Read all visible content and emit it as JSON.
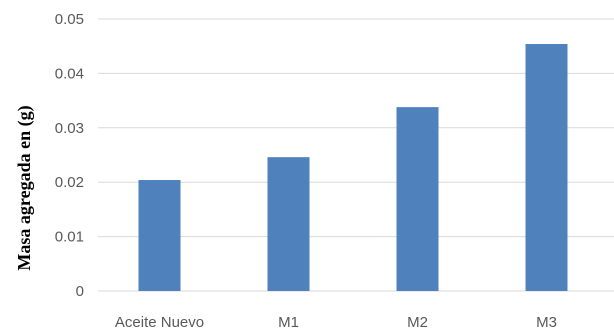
{
  "chart_data": {
    "type": "bar",
    "categories": [
      "Aceite Nuevo",
      "M1",
      "M2",
      "M3"
    ],
    "values": [
      0.0204,
      0.0246,
      0.0338,
      0.0454
    ],
    "ylabel": "Masa agregada en (g)",
    "xlabel": "",
    "ylim": [
      0,
      0.05
    ],
    "yticks": [
      0,
      0.01,
      0.02,
      0.03,
      0.04,
      0.05
    ],
    "ytick_labels": [
      "0",
      "0.01",
      "0.02",
      "0.03",
      "0.04",
      "0.05"
    ],
    "grid": true,
    "legend": "none",
    "colors": {
      "bar": "#4F81BD",
      "grid": "#D9D9D9",
      "tick_text": "#595959"
    }
  }
}
